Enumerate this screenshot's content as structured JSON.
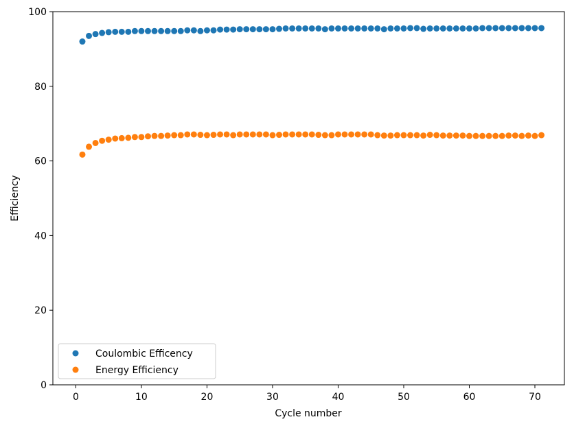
{
  "chart_data": {
    "type": "scatter",
    "title": "",
    "xlabel": "Cycle number",
    "ylabel": "Efficiency",
    "xlim": [
      -3.5,
      74.5
    ],
    "ylim": [
      0,
      100
    ],
    "xticks": [
      0,
      10,
      20,
      30,
      40,
      50,
      60,
      70
    ],
    "yticks": [
      0,
      20,
      40,
      60,
      80,
      100
    ],
    "grid": false,
    "legend_position": "lower-left",
    "x": [
      1,
      2,
      3,
      4,
      5,
      6,
      7,
      8,
      9,
      10,
      11,
      12,
      13,
      14,
      15,
      16,
      17,
      18,
      19,
      20,
      21,
      22,
      23,
      24,
      25,
      26,
      27,
      28,
      29,
      30,
      31,
      32,
      33,
      34,
      35,
      36,
      37,
      38,
      39,
      40,
      41,
      42,
      43,
      44,
      45,
      46,
      47,
      48,
      49,
      50,
      51,
      52,
      53,
      54,
      55,
      56,
      57,
      58,
      59,
      60,
      61,
      62,
      63,
      64,
      65,
      66,
      67,
      68,
      69,
      70,
      71
    ],
    "series": [
      {
        "name": "Coulombic Efficency",
        "color": "#1f77b4",
        "values": [
          92.0,
          93.5,
          94.0,
          94.3,
          94.5,
          94.6,
          94.6,
          94.6,
          94.8,
          94.8,
          94.8,
          94.8,
          94.8,
          94.8,
          94.8,
          94.8,
          95.0,
          95.0,
          94.8,
          95.0,
          95.0,
          95.2,
          95.2,
          95.2,
          95.3,
          95.3,
          95.3,
          95.3,
          95.3,
          95.3,
          95.4,
          95.5,
          95.5,
          95.5,
          95.5,
          95.5,
          95.5,
          95.3,
          95.5,
          95.5,
          95.5,
          95.5,
          95.5,
          95.5,
          95.5,
          95.5,
          95.3,
          95.5,
          95.5,
          95.5,
          95.6,
          95.6,
          95.4,
          95.5,
          95.5,
          95.5,
          95.5,
          95.5,
          95.5,
          95.5,
          95.5,
          95.6,
          95.6,
          95.6,
          95.6,
          95.6,
          95.6,
          95.6,
          95.6,
          95.6,
          95.6
        ]
      },
      {
        "name": "Energy Efficiency",
        "color": "#ff7f0e",
        "values": [
          61.7,
          63.8,
          64.8,
          65.4,
          65.7,
          66.0,
          66.1,
          66.2,
          66.4,
          66.4,
          66.6,
          66.7,
          66.7,
          66.8,
          66.9,
          66.9,
          67.1,
          67.1,
          67.0,
          66.9,
          67.0,
          67.1,
          67.1,
          66.9,
          67.1,
          67.1,
          67.1,
          67.1,
          67.1,
          66.9,
          67.0,
          67.1,
          67.1,
          67.1,
          67.1,
          67.1,
          67.0,
          66.9,
          66.9,
          67.1,
          67.1,
          67.1,
          67.1,
          67.1,
          67.1,
          66.9,
          66.8,
          66.8,
          66.9,
          66.9,
          66.9,
          66.9,
          66.8,
          67.0,
          66.9,
          66.8,
          66.8,
          66.8,
          66.8,
          66.7,
          66.7,
          66.7,
          66.7,
          66.7,
          66.7,
          66.8,
          66.8,
          66.7,
          66.8,
          66.7,
          66.9
        ]
      }
    ]
  }
}
